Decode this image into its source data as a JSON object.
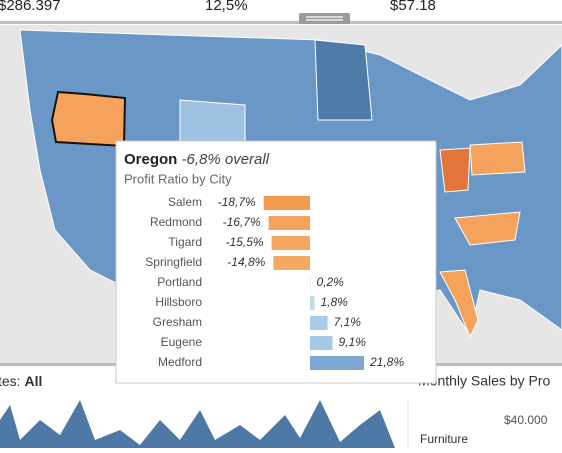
{
  "kpis": [
    "$286.397",
    "12,5%",
    "$57.18"
  ],
  "filter_label": "tes:",
  "filter_value": "All",
  "panel_title": "Monthly Sales by Pro",
  "axis_label": "$40.000",
  "row_label": "Furniture",
  "chart_data": {
    "type": "bar",
    "title": "Oregon",
    "title_note": "-6,8% overall",
    "subtitle": "Profit Ratio by City",
    "categories": [
      "Salem",
      "Redmond",
      "Tigard",
      "Springfield",
      "Portland",
      "Hillsboro",
      "Gresham",
      "Eugene",
      "Medford"
    ],
    "values": [
      -18.7,
      -16.7,
      -15.5,
      -14.8,
      0.2,
      1.8,
      7.1,
      9.1,
      21.8
    ],
    "value_labels": [
      "-18,7%",
      "-16,7%",
      "-15,5%",
      "-14,8%",
      "0,2%",
      "1,8%",
      "7,1%",
      "9,1%",
      "21,8%"
    ],
    "colors": [
      "#f39b4f",
      "#f5a35c",
      "#f5a660",
      "#f5a862",
      "#d4dde6",
      "#c8d9e6",
      "#a9cce6",
      "#a4c8e4",
      "#7ea8d1"
    ]
  }
}
